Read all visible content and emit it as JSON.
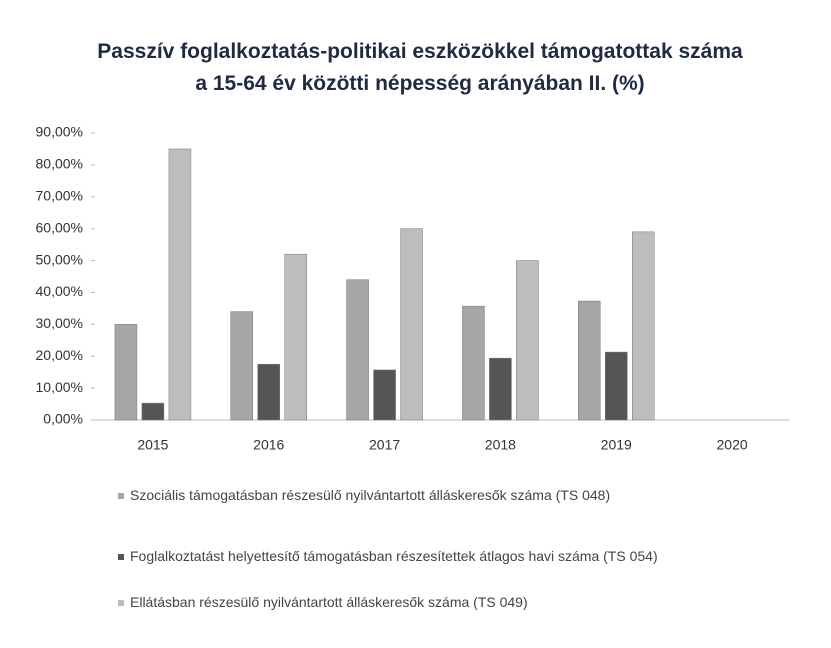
{
  "chart_data": {
    "type": "bar",
    "title": "Passzív foglalkoztatás-politikai eszközökkel támogatottak száma a 15-64 év közötti népesség arányában II. (%)",
    "categories": [
      "2015",
      "2016",
      "2017",
      "2018",
      "2019",
      "2020"
    ],
    "series": [
      {
        "name": "Szociális támogatásban részesülő nyilvántartott álláskeresők száma (TS 048)",
        "color": "#a6a6a6",
        "values": [
          30,
          34,
          44,
          35.7,
          37.3,
          null
        ]
      },
      {
        "name": "Foglalkoztatást helyettesítő támogatásban részesítettek átlagos havi száma (TS 054)",
        "color": "#555555",
        "values": [
          5.3,
          17.5,
          15.7,
          19.4,
          21.3,
          null
        ]
      },
      {
        "name": "Ellátásban részesülő nyilvántartott álláskeresők száma (TS 049)",
        "color": "#bdbdbd",
        "values": [
          85,
          52,
          60,
          50,
          59,
          null
        ]
      }
    ],
    "ylim": [
      0,
      90
    ],
    "yticks": [
      {
        "value": 0,
        "label": "0,00%"
      },
      {
        "value": 10,
        "label": "10,00%"
      },
      {
        "value": 20,
        "label": "20,00%"
      },
      {
        "value": 30,
        "label": "30,00%"
      },
      {
        "value": 40,
        "label": "40,00%"
      },
      {
        "value": 50,
        "label": "50,00%"
      },
      {
        "value": 60,
        "label": "60,00%"
      },
      {
        "value": 70,
        "label": "70,00%"
      },
      {
        "value": 80,
        "label": "80,00%"
      },
      {
        "value": 90,
        "label": "90,00%"
      }
    ],
    "grid": false
  }
}
